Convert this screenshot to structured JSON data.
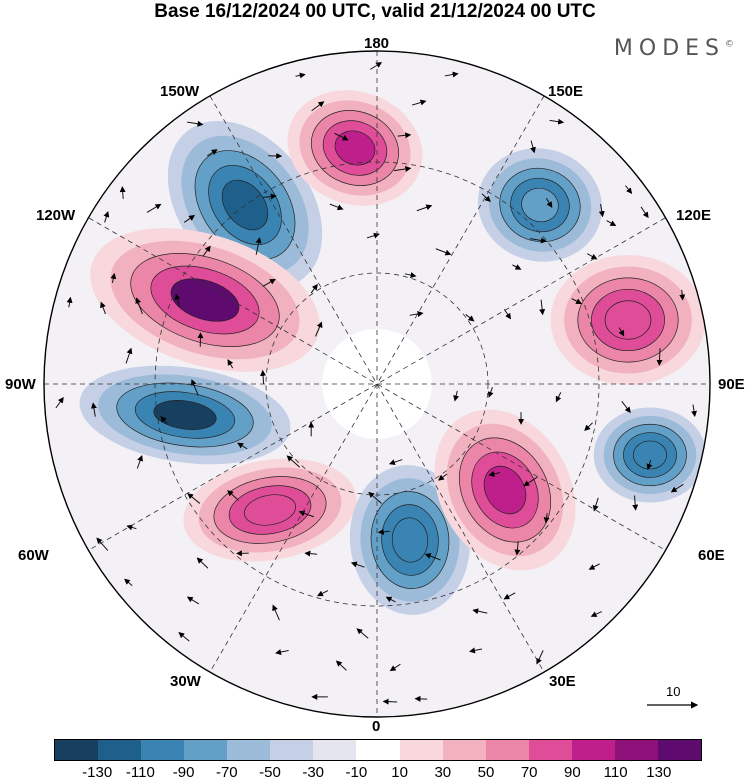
{
  "title": "Base 16/12/2024 00 UTC, valid 21/12/2024 00 UTC",
  "logo": "MODES",
  "logo_mark": "©",
  "longitude_labels": {
    "n180": "180",
    "n150w": "150W",
    "n150e": "150E",
    "n120w": "120W",
    "n120e": "120E",
    "n90w": "90W",
    "n90e": "90E",
    "n60w": "60W",
    "n60e": "60E",
    "n30w": "30W",
    "n30e": "30E",
    "n0": "0"
  },
  "vector_scale": {
    "label": "10"
  },
  "colorbar": {
    "colors": [
      "#173f5f",
      "#1f5f8b",
      "#3a84b3",
      "#63a0c8",
      "#9cbbd9",
      "#c5d0e6",
      "#e5e5f0",
      "#ffffff",
      "#f8d8dc",
      "#f2b1bf",
      "#eb86a8",
      "#df4c98",
      "#bf1f8a",
      "#8e1079",
      "#5e0a6e"
    ],
    "ticks": [
      "-130",
      "-110",
      "-90",
      "-70",
      "-50",
      "-30",
      "-10",
      "10",
      "30",
      "50",
      "70",
      "90",
      "110",
      "130"
    ]
  },
  "anomaly_centers": [
    {
      "name": "low-150w",
      "color": "#1f5f8b",
      "sign": "negative"
    },
    {
      "name": "high-180",
      "color": "#bf1f8a",
      "sign": "positive"
    },
    {
      "name": "high-120w",
      "color": "#5e0a6e",
      "sign": "positive"
    },
    {
      "name": "low-90w",
      "color": "#173f5f",
      "sign": "negative"
    },
    {
      "name": "high-60w",
      "color": "#df4c98",
      "sign": "positive"
    },
    {
      "name": "low-10e",
      "color": "#3a84b3",
      "sign": "negative"
    },
    {
      "name": "high-45e",
      "color": "#bf1f8a",
      "sign": "positive"
    },
    {
      "name": "low-100e",
      "color": "#3a84b3",
      "sign": "negative"
    },
    {
      "name": "high-110e",
      "color": "#df4c98",
      "sign": "positive"
    },
    {
      "name": "low-150e",
      "color": "#63a0c8",
      "sign": "negative"
    }
  ]
}
